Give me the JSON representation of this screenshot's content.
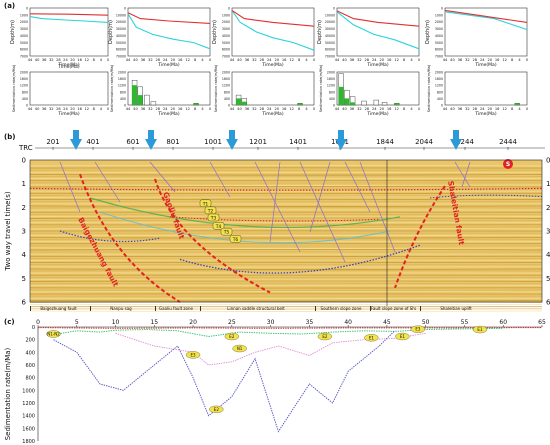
{
  "panels": {
    "a_label": "(a)",
    "b_label": "(b)",
    "c_label": "(c)"
  },
  "burial": {
    "ylabel": "Depth(m)",
    "xlabel": "Time(Ma)",
    "y_ticks_a": [
      "0",
      "1000",
      "2000",
      "3000",
      "4000",
      "5000",
      "6000",
      "7000"
    ],
    "y_ticks_b": [
      "0",
      "10000",
      "20000",
      "30000",
      "40000",
      "50000",
      "60000",
      "70000"
    ],
    "x_ticks": [
      "44",
      "40",
      "36",
      "32",
      "28",
      "24",
      "20",
      "16",
      "12",
      "8",
      "4",
      "0"
    ],
    "line_colors": {
      "upper": "#e03030",
      "lower": "#2ad4dc"
    }
  },
  "sed_rate": {
    "ylabel": "Sedimentation rate(m/Ma)",
    "xlabel": "Time(Ma)",
    "y_ticks": [
      "2000",
      "1600",
      "1200",
      "800",
      "400",
      "0"
    ],
    "x_ticks": [
      "44",
      "40",
      "36",
      "32",
      "28",
      "24",
      "20",
      "16",
      "12",
      "8",
      "4",
      "0"
    ],
    "bar_fill": "#2db82d"
  },
  "trc": {
    "label": "TRC",
    "values": [
      "201",
      "401",
      "601",
      "801",
      "1001",
      "1201",
      "1401",
      "1601",
      "1844",
      "2044",
      "2244",
      "2444"
    ]
  },
  "seismic": {
    "ylabel": "Two way travel time(s)",
    "y_ticks": [
      "0",
      "1",
      "2",
      "3",
      "4",
      "5",
      "6"
    ],
    "faults": [
      "Baigezhuang fault",
      "Gaoliu fault",
      "Shaleitian fault"
    ],
    "horizons": [
      "T1",
      "T2",
      "T3",
      "T4",
      "T5",
      "T6"
    ],
    "marker": "S"
  },
  "zones": [
    "Baigezhuang fault",
    "Nanpu sag",
    "Gaoliu fault zone",
    "Linnan saddle structural belt",
    "Southern slope zone",
    "Fault slope zone of Shalei fault",
    "Shaleitian uplift"
  ],
  "panel_c": {
    "ylabel": "Sedimentation rate(m/Ma)",
    "x_ticks": [
      "0",
      "5",
      "10",
      "15",
      "20",
      "25",
      "30",
      "35",
      "40",
      "45",
      "50",
      "55",
      "60",
      "65"
    ],
    "y_ticks": [
      "0",
      "200",
      "400",
      "600",
      "800",
      "1000",
      "1200",
      "1400",
      "1600",
      "1800"
    ],
    "labels": [
      "N1-N2",
      "E3",
      "E2",
      "E2",
      "E1",
      "N1",
      "E3",
      "E2",
      "E1",
      "E1"
    ]
  }
}
